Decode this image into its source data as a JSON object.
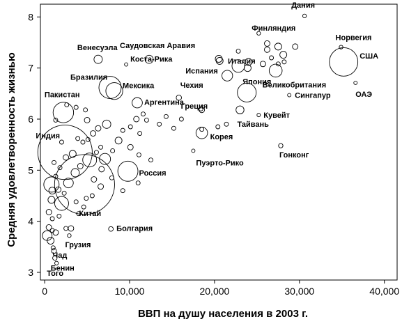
{
  "chart_data": {
    "type": "scatter",
    "xlabel": "ВВП на душу населения в 2003 г.",
    "ylabel": "Средняя удовлетворенность жизнью",
    "xlim": [
      -500,
      41500
    ],
    "ylim": [
      2.85,
      8.25
    ],
    "x_ticks": [
      0,
      10000,
      20000,
      30000,
      40000
    ],
    "x_tick_labels": [
      "0",
      "10,000",
      "20,000",
      "30,000",
      "40,000"
    ],
    "y_ticks": [
      3,
      4,
      5,
      6,
      7,
      8
    ],
    "y_tick_labels": [
      "3",
      "4",
      "5",
      "6",
      "7",
      "8"
    ],
    "grid": false,
    "size_encoding": "population",
    "labeled_points": [
      {
        "name": "Дания",
        "x": 30600,
        "y": 8.02,
        "population": 5
      },
      {
        "name": "Финляндия",
        "x": 25200,
        "y": 7.68,
        "population": 5
      },
      {
        "name": "Норвегия",
        "x": 34900,
        "y": 7.41,
        "population": 5
      },
      {
        "name": "США",
        "x": 35200,
        "y": 7.12,
        "population": 290
      },
      {
        "name": "Венесуэла",
        "x": 6300,
        "y": 7.17,
        "population": 25
      },
      {
        "name": "Саудовская Аравия",
        "x": 12300,
        "y": 7.17,
        "population": 24
      },
      {
        "name": "Коста-Рика",
        "x": 9600,
        "y": 7.07,
        "population": 4
      },
      {
        "name": "Италия",
        "x": 22800,
        "y": 7.04,
        "population": 57
      },
      {
        "name": "Испания",
        "x": 21500,
        "y": 6.85,
        "population": 41
      },
      {
        "name": "Великобритания",
        "x": 27200,
        "y": 6.95,
        "population": 60
      },
      {
        "name": "Бразилия",
        "x": 7700,
        "y": 6.62,
        "population": 177
      },
      {
        "name": "Мексика",
        "x": 8200,
        "y": 6.55,
        "population": 102
      },
      {
        "name": "Чехия",
        "x": 15800,
        "y": 6.42,
        "population": 10
      },
      {
        "name": "Япония",
        "x": 23800,
        "y": 6.52,
        "population": 127
      },
      {
        "name": "Сингапур",
        "x": 28800,
        "y": 6.47,
        "population": 4
      },
      {
        "name": "ОАЭ",
        "x": 36600,
        "y": 6.71,
        "population": 4
      },
      {
        "name": "Пакистан",
        "x": 2200,
        "y": 6.13,
        "population": 150
      },
      {
        "name": "Аргентина",
        "x": 10900,
        "y": 6.32,
        "population": 38
      },
      {
        "name": "Греция",
        "x": 18500,
        "y": 6.18,
        "population": 11
      },
      {
        "name": "Тайвань",
        "x": 23000,
        "y": 6.18,
        "population": 23
      },
      {
        "name": "Кувейт",
        "x": 25200,
        "y": 6.08,
        "population": 2
      },
      {
        "name": "Индия",
        "x": 2400,
        "y": 5.35,
        "population": 1060
      },
      {
        "name": "Корея",
        "x": 18500,
        "y": 5.73,
        "population": 48
      },
      {
        "name": "Пуэрто-Рико",
        "x": 17500,
        "y": 5.38,
        "population": 4
      },
      {
        "name": "Гонконг",
        "x": 27800,
        "y": 5.48,
        "population": 7
      },
      {
        "name": "Россия",
        "x": 9800,
        "y": 4.98,
        "population": 145
      },
      {
        "name": "Китай",
        "x": 4700,
        "y": 4.72,
        "population": 1290
      },
      {
        "name": "Болгария",
        "x": 7800,
        "y": 3.85,
        "population": 8
      },
      {
        "name": "Грузия",
        "x": 2900,
        "y": 3.72,
        "population": 5
      },
      {
        "name": "Чад",
        "x": 1100,
        "y": 3.42,
        "population": 9
      },
      {
        "name": "Бенин",
        "x": 1200,
        "y": 3.28,
        "population": 7
      },
      {
        "name": "Того",
        "x": 1400,
        "y": 3.18,
        "population": 5
      }
    ],
    "unlabeled_points": [
      {
        "x": 27500,
        "y": 7.42,
        "r": 5
      },
      {
        "x": 28100,
        "y": 7.26,
        "r": 5
      },
      {
        "x": 27500,
        "y": 7.08,
        "r": 3
      },
      {
        "x": 26700,
        "y": 7.2,
        "r": 3
      },
      {
        "x": 24000,
        "y": 7.12,
        "r": 5
      },
      {
        "x": 26200,
        "y": 7.36,
        "r": 4
      },
      {
        "x": 29500,
        "y": 7.42,
        "r": 4
      },
      {
        "x": 28200,
        "y": 7.12,
        "r": 3
      },
      {
        "x": 23900,
        "y": 7.0,
        "r": 5
      },
      {
        "x": 22800,
        "y": 7.33,
        "r": 3
      },
      {
        "x": 26200,
        "y": 7.48,
        "r": 4
      },
      {
        "x": 25700,
        "y": 7.08,
        "r": 4
      },
      {
        "x": 20500,
        "y": 7.18,
        "r": 5
      },
      {
        "x": 20600,
        "y": 7.14,
        "r": 5
      },
      {
        "x": 18400,
        "y": 6.2,
        "r": 3
      },
      {
        "x": 16100,
        "y": 6.0,
        "r": 3
      },
      {
        "x": 18500,
        "y": 5.8,
        "r": 3
      },
      {
        "x": 20400,
        "y": 5.85,
        "r": 3
      },
      {
        "x": 21400,
        "y": 5.9,
        "r": 3
      },
      {
        "x": 12000,
        "y": 5.98,
        "r": 3
      },
      {
        "x": 11600,
        "y": 6.1,
        "r": 3
      },
      {
        "x": 11200,
        "y": 5.72,
        "r": 3
      },
      {
        "x": 10100,
        "y": 5.85,
        "r": 3
      },
      {
        "x": 9200,
        "y": 5.78,
        "r": 3
      },
      {
        "x": 8700,
        "y": 5.58,
        "r": 5
      },
      {
        "x": 10100,
        "y": 5.45,
        "r": 4
      },
      {
        "x": 11100,
        "y": 5.3,
        "r": 3
      },
      {
        "x": 12500,
        "y": 5.2,
        "r": 3
      },
      {
        "x": 11000,
        "y": 4.75,
        "r": 3
      },
      {
        "x": 7300,
        "y": 5.9,
        "r": 6
      },
      {
        "x": 6300,
        "y": 5.82,
        "r": 4
      },
      {
        "x": 5700,
        "y": 5.72,
        "r": 4
      },
      {
        "x": 5100,
        "y": 5.6,
        "r": 3
      },
      {
        "x": 4500,
        "y": 5.55,
        "r": 3
      },
      {
        "x": 6600,
        "y": 5.45,
        "r": 3
      },
      {
        "x": 7100,
        "y": 5.22,
        "r": 8
      },
      {
        "x": 6700,
        "y": 5.02,
        "r": 4
      },
      {
        "x": 5300,
        "y": 5.2,
        "r": 10
      },
      {
        "x": 4200,
        "y": 5.08,
        "r": 4
      },
      {
        "x": 3300,
        "y": 5.32,
        "r": 5
      },
      {
        "x": 2500,
        "y": 5.25,
        "r": 4
      },
      {
        "x": 1800,
        "y": 5.05,
        "r": 3
      },
      {
        "x": 1300,
        "y": 4.88,
        "r": 3
      },
      {
        "x": 800,
        "y": 4.72,
        "r": 11
      },
      {
        "x": 900,
        "y": 4.6,
        "r": 5
      },
      {
        "x": 1600,
        "y": 4.62,
        "r": 4
      },
      {
        "x": 2300,
        "y": 4.55,
        "r": 3
      },
      {
        "x": 2000,
        "y": 4.35,
        "r": 10
      },
      {
        "x": 3700,
        "y": 4.38,
        "r": 3
      },
      {
        "x": 4900,
        "y": 4.45,
        "r": 3
      },
      {
        "x": 5600,
        "y": 4.5,
        "r": 3
      },
      {
        "x": 5800,
        "y": 4.82,
        "r": 4
      },
      {
        "x": 6600,
        "y": 4.68,
        "r": 4
      },
      {
        "x": 4600,
        "y": 4.28,
        "r": 3
      },
      {
        "x": 800,
        "y": 4.42,
        "r": 5
      },
      {
        "x": 500,
        "y": 4.18,
        "r": 4
      },
      {
        "x": 900,
        "y": 4.05,
        "r": 3
      },
      {
        "x": 500,
        "y": 3.88,
        "r": 4
      },
      {
        "x": 900,
        "y": 3.82,
        "r": 3
      },
      {
        "x": 300,
        "y": 3.72,
        "r": 7
      },
      {
        "x": 700,
        "y": 3.62,
        "r": 5
      },
      {
        "x": 1300,
        "y": 3.78,
        "r": 4
      },
      {
        "x": 2500,
        "y": 3.86,
        "r": 3
      },
      {
        "x": 3100,
        "y": 3.86,
        "r": 4
      },
      {
        "x": 4000,
        "y": 4.15,
        "r": 3
      },
      {
        "x": 3600,
        "y": 4.95,
        "r": 6
      },
      {
        "x": 2800,
        "y": 4.75,
        "r": 7
      },
      {
        "x": 1100,
        "y": 5.15,
        "r": 3
      },
      {
        "x": 2000,
        "y": 5.55,
        "r": 3
      },
      {
        "x": 1300,
        "y": 5.98,
        "r": 3
      },
      {
        "x": 2600,
        "y": 6.28,
        "r": 3
      },
      {
        "x": 3700,
        "y": 6.23,
        "r": 3
      },
      {
        "x": 5000,
        "y": 5.98,
        "r": 4
      },
      {
        "x": 4800,
        "y": 6.18,
        "r": 3
      },
      {
        "x": 15200,
        "y": 5.82,
        "r": 3
      },
      {
        "x": 14300,
        "y": 6.05,
        "r": 3
      },
      {
        "x": 13500,
        "y": 5.9,
        "r": 3
      },
      {
        "x": 8000,
        "y": 5.38,
        "r": 3
      },
      {
        "x": 6100,
        "y": 5.35,
        "r": 3
      },
      {
        "x": 9200,
        "y": 4.6,
        "r": 3
      },
      {
        "x": 7900,
        "y": 4.85,
        "r": 3
      },
      {
        "x": 3900,
        "y": 5.62,
        "r": 3
      },
      {
        "x": 1700,
        "y": 4.1,
        "r": 3
      },
      {
        "x": 1000,
        "y": 3.48,
        "r": 3
      },
      {
        "x": 10800,
        "y": 6.0,
        "r": 4
      }
    ]
  }
}
